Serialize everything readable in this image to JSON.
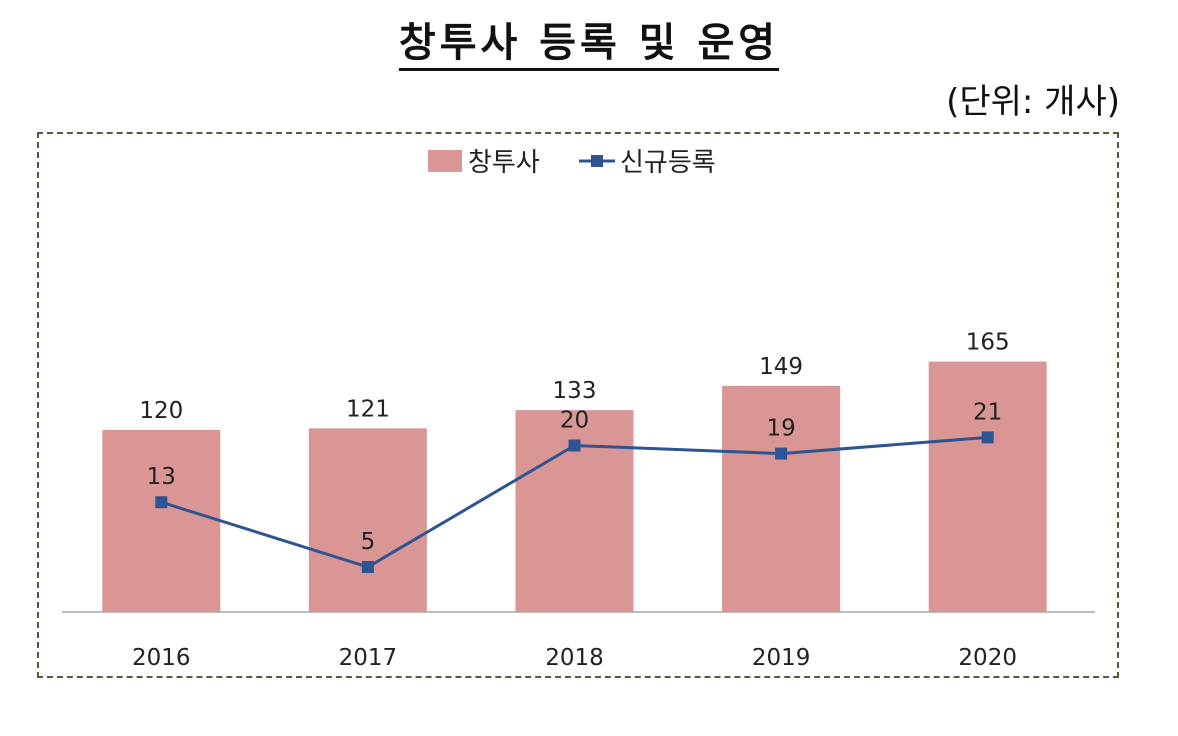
{
  "title": "창투사 등록 및 운영",
  "unit": "(단위:  개사)",
  "chart_data": {
    "type": "bar",
    "categories": [
      "2016",
      "2017",
      "2018",
      "2019",
      "2020"
    ],
    "series": [
      {
        "name": "창투사",
        "kind": "bar",
        "color": "#d99694",
        "values": [
          120,
          121,
          133,
          149,
          165
        ]
      },
      {
        "name": "신규등록",
        "kind": "line",
        "color": "#2e5491",
        "values": [
          13,
          5,
          20,
          19,
          21
        ]
      }
    ],
    "ylim": [
      0,
      180
    ],
    "legend": "top-center",
    "grid": false
  }
}
